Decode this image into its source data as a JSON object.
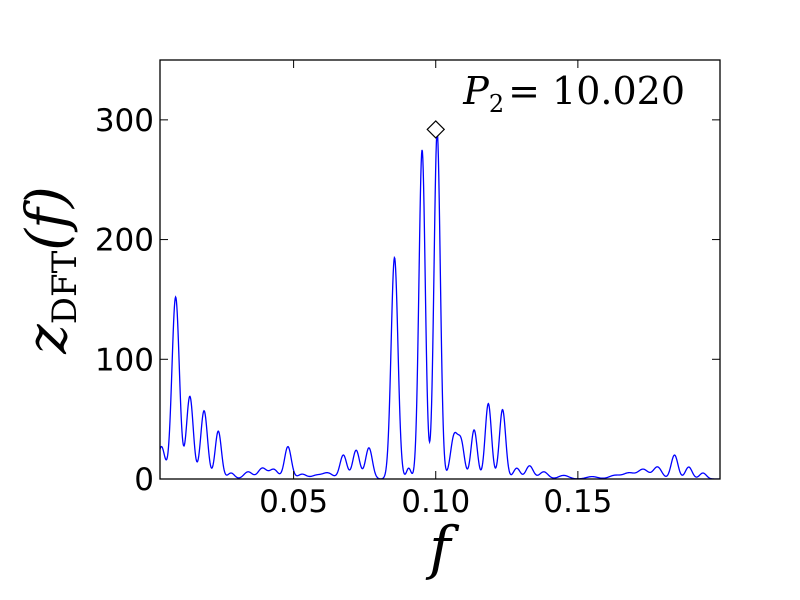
{
  "chart_data": {
    "type": "line",
    "xlabel": "f",
    "ylabel": {
      "main": "z",
      "sub": "DFT",
      "arg": "(f)"
    },
    "annotation": {
      "symbol": "P",
      "sub": "2",
      "rest": "= 10.020"
    },
    "xlim": [
      0.003,
      0.2
    ],
    "ylim": [
      0,
      350
    ],
    "xticks": [
      0.05,
      0.1,
      0.15
    ],
    "xtick_labels": [
      "0.05",
      "0.10",
      "0.15"
    ],
    "yticks": [
      0,
      100,
      200,
      300
    ],
    "ytick_labels": [
      "0",
      "100",
      "200",
      "300"
    ],
    "grid": false,
    "line_color": "#0000ff",
    "marker": {
      "type": "diamond",
      "x": 0.1,
      "y": 292
    },
    "peaks": [
      {
        "x": 0.0035,
        "y": 27,
        "w": 0.0012
      },
      {
        "x": 0.0085,
        "y": 152,
        "w": 0.0013
      },
      {
        "x": 0.0135,
        "y": 69,
        "w": 0.0012
      },
      {
        "x": 0.0185,
        "y": 57,
        "w": 0.0012
      },
      {
        "x": 0.0235,
        "y": 40,
        "w": 0.0011
      },
      {
        "x": 0.028,
        "y": 5,
        "w": 0.0012
      },
      {
        "x": 0.034,
        "y": 6,
        "w": 0.0015
      },
      {
        "x": 0.039,
        "y": 9,
        "w": 0.0015
      },
      {
        "x": 0.043,
        "y": 8,
        "w": 0.0015
      },
      {
        "x": 0.048,
        "y": 27,
        "w": 0.0012
      },
      {
        "x": 0.053,
        "y": 4,
        "w": 0.0015
      },
      {
        "x": 0.058,
        "y": 3,
        "w": 0.0018
      },
      {
        "x": 0.062,
        "y": 5,
        "w": 0.0018
      },
      {
        "x": 0.0675,
        "y": 20,
        "w": 0.0012
      },
      {
        "x": 0.072,
        "y": 24,
        "w": 0.0012
      },
      {
        "x": 0.0765,
        "y": 26,
        "w": 0.0012
      },
      {
        "x": 0.0855,
        "y": 185,
        "w": 0.0012
      },
      {
        "x": 0.0905,
        "y": 9,
        "w": 0.0008
      },
      {
        "x": 0.0952,
        "y": 275,
        "w": 0.0011
      },
      {
        "x": 0.1005,
        "y": 290,
        "w": 0.0011
      },
      {
        "x": 0.1065,
        "y": 36,
        "w": 0.0013
      },
      {
        "x": 0.109,
        "y": 28,
        "w": 0.0011
      },
      {
        "x": 0.1135,
        "y": 41,
        "w": 0.0011
      },
      {
        "x": 0.1185,
        "y": 63,
        "w": 0.0011
      },
      {
        "x": 0.1235,
        "y": 58,
        "w": 0.0011
      },
      {
        "x": 0.1285,
        "y": 9,
        "w": 0.0012
      },
      {
        "x": 0.133,
        "y": 11,
        "w": 0.0013
      },
      {
        "x": 0.138,
        "y": 6,
        "w": 0.0015
      },
      {
        "x": 0.145,
        "y": 3,
        "w": 0.0018
      },
      {
        "x": 0.155,
        "y": 2,
        "w": 0.002
      },
      {
        "x": 0.163,
        "y": 3,
        "w": 0.002
      },
      {
        "x": 0.168,
        "y": 5,
        "w": 0.002
      },
      {
        "x": 0.173,
        "y": 8,
        "w": 0.0018
      },
      {
        "x": 0.178,
        "y": 10,
        "w": 0.0015
      },
      {
        "x": 0.184,
        "y": 20,
        "w": 0.0012
      },
      {
        "x": 0.189,
        "y": 10,
        "w": 0.0012
      },
      {
        "x": 0.194,
        "y": 5,
        "w": 0.0012
      }
    ]
  }
}
